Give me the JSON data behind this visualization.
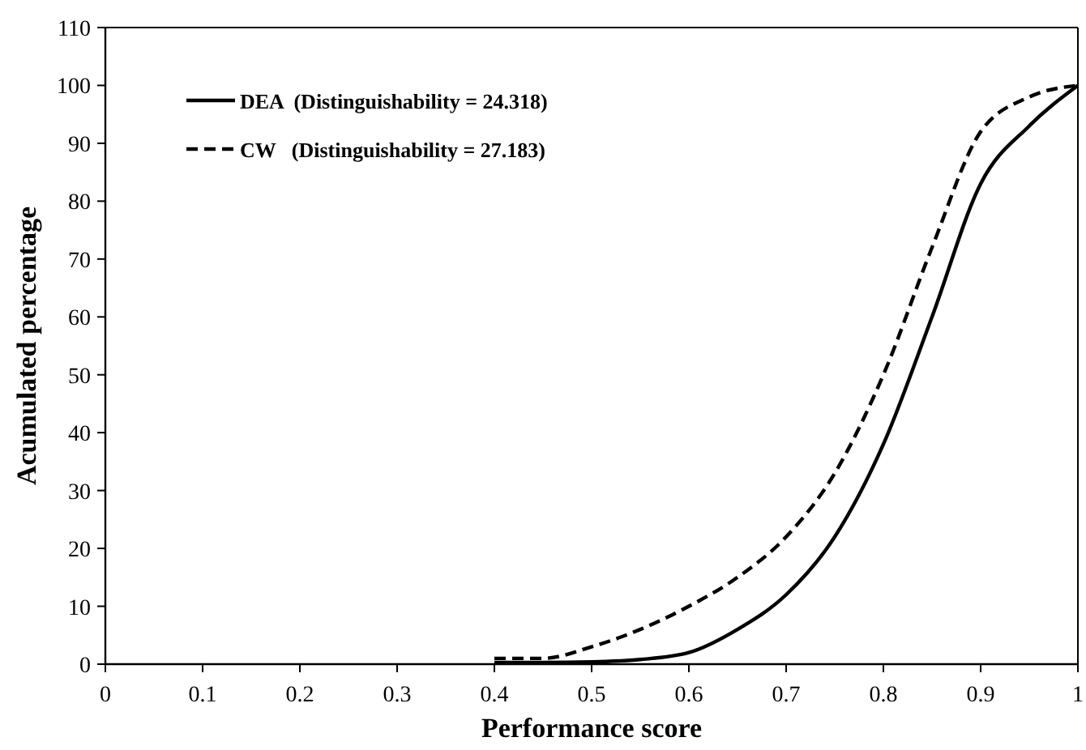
{
  "chart_data": {
    "type": "line",
    "xlabel": "Performance score",
    "ylabel": "Acumulated percentage",
    "xlim": [
      0,
      1
    ],
    "xticks": [
      0,
      0.1,
      0.2,
      0.3,
      0.4,
      0.5,
      0.6,
      0.7,
      0.8,
      0.9,
      1
    ],
    "ylim": [
      0,
      110
    ],
    "yticks": [
      0,
      10,
      20,
      30,
      40,
      50,
      60,
      70,
      80,
      90,
      100,
      110
    ],
    "grid": false,
    "legend": "top left",
    "marker": "none",
    "series": [
      {
        "name": "DEA  (Distinguishability = 24.318)",
        "color": "#000000",
        "line_style": "solid",
        "x": [
          0.4,
          0.45,
          0.5,
          0.55,
          0.6,
          0.65,
          0.7,
          0.75,
          0.8,
          0.85,
          0.9,
          0.95,
          1
        ],
        "values": [
          0.3,
          0.3,
          0.4,
          0.8,
          2,
          6,
          12,
          22,
          38,
          60,
          83,
          93,
          100
        ]
      },
      {
        "name": "CW   (Distinguishability = 27.183)",
        "color": "#000000",
        "line_style": "dashed",
        "x": [
          0.4,
          0.45,
          0.5,
          0.55,
          0.6,
          0.65,
          0.7,
          0.75,
          0.8,
          0.85,
          0.9,
          0.95,
          1
        ],
        "values": [
          1,
          1,
          3,
          6,
          10,
          15,
          22,
          33,
          50,
          72,
          92,
          98,
          100
        ]
      }
    ]
  }
}
